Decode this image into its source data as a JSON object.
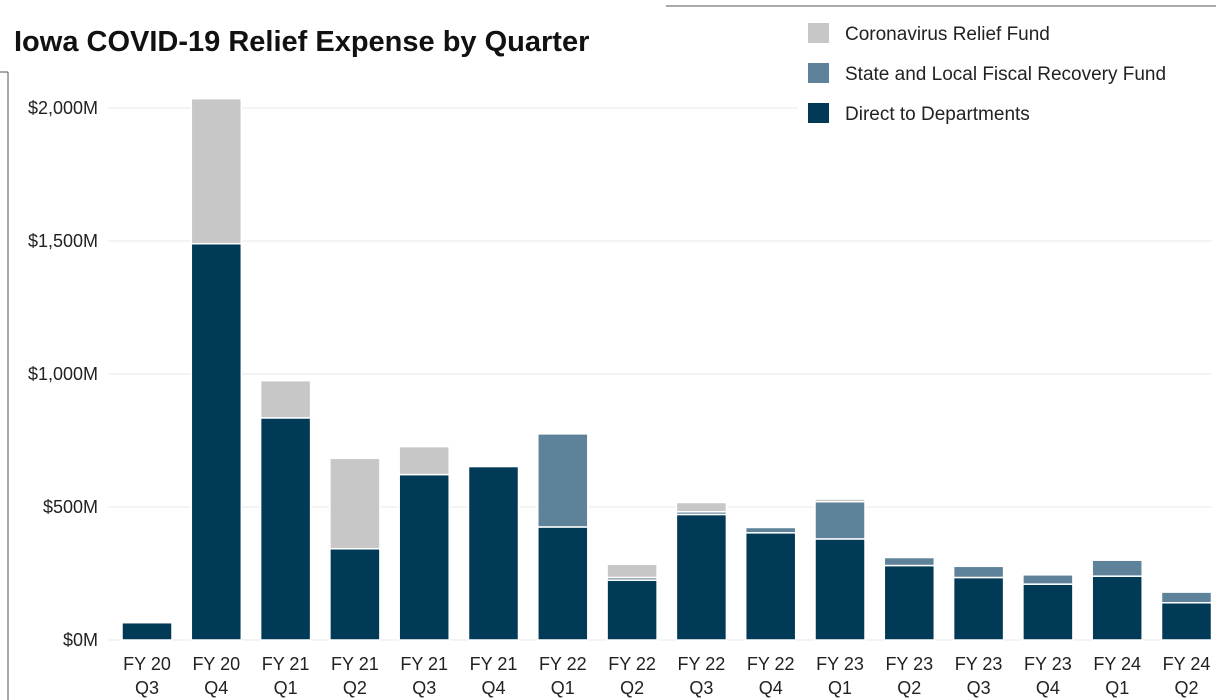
{
  "chart_data": {
    "type": "bar",
    "stacked": true,
    "title": "Iowa COVID-19 Relief Expense by Quarter",
    "categories": [
      [
        "FY 20",
        "Q3"
      ],
      [
        "FY 20",
        "Q4"
      ],
      [
        "FY 21",
        "Q1"
      ],
      [
        "FY 21",
        "Q2"
      ],
      [
        "FY 21",
        "Q3"
      ],
      [
        "FY 21",
        "Q4"
      ],
      [
        "FY 22",
        "Q1"
      ],
      [
        "FY 22",
        "Q2"
      ],
      [
        "FY 22",
        "Q3"
      ],
      [
        "FY 22",
        "Q4"
      ],
      [
        "FY 23",
        "Q1"
      ],
      [
        "FY 23",
        "Q2"
      ],
      [
        "FY 23",
        "Q3"
      ],
      [
        "FY 23",
        "Q4"
      ],
      [
        "FY 24",
        "Q1"
      ],
      [
        "FY 24",
        "Q2"
      ]
    ],
    "series": [
      {
        "name": "Direct to Departments",
        "color": "#003a57",
        "values": [
          65,
          1490,
          835,
          343,
          622,
          652,
          425,
          225,
          472,
          403,
          380,
          280,
          235,
          210,
          240,
          140
        ]
      },
      {
        "name": "Coronavirus Relief Fund",
        "color": "#c7c7c7",
        "values": [
          0,
          545,
          140,
          340,
          105,
          0,
          0,
          50,
          35,
          0,
          10,
          0,
          0,
          0,
          0,
          0
        ]
      },
      {
        "name": "State and Local Fiscal Recovery Fund",
        "color": "#5e8299",
        "values": [
          0,
          0,
          0,
          0,
          0,
          0,
          350,
          10,
          10,
          20,
          140,
          30,
          42,
          35,
          60,
          40
        ]
      }
    ],
    "stack_order": [
      "Direct to Departments",
      "State and Local Fiscal Recovery Fund",
      "Coronavirus Relief Fund"
    ],
    "legend": {
      "placement": "top-right",
      "order": [
        "Coronavirus Relief Fund",
        "State and Local Fiscal Recovery Fund",
        "Direct to Departments"
      ]
    },
    "y_ticks": [
      {
        "value": 0,
        "label": "$0M"
      },
      {
        "value": 500,
        "label": "$500M"
      },
      {
        "value": 1000,
        "label": "$1,000M"
      },
      {
        "value": 1500,
        "label": "$1,500M"
      },
      {
        "value": 2000,
        "label": "$2,000M"
      }
    ],
    "ylim": [
      0,
      2000
    ],
    "grid": true
  }
}
